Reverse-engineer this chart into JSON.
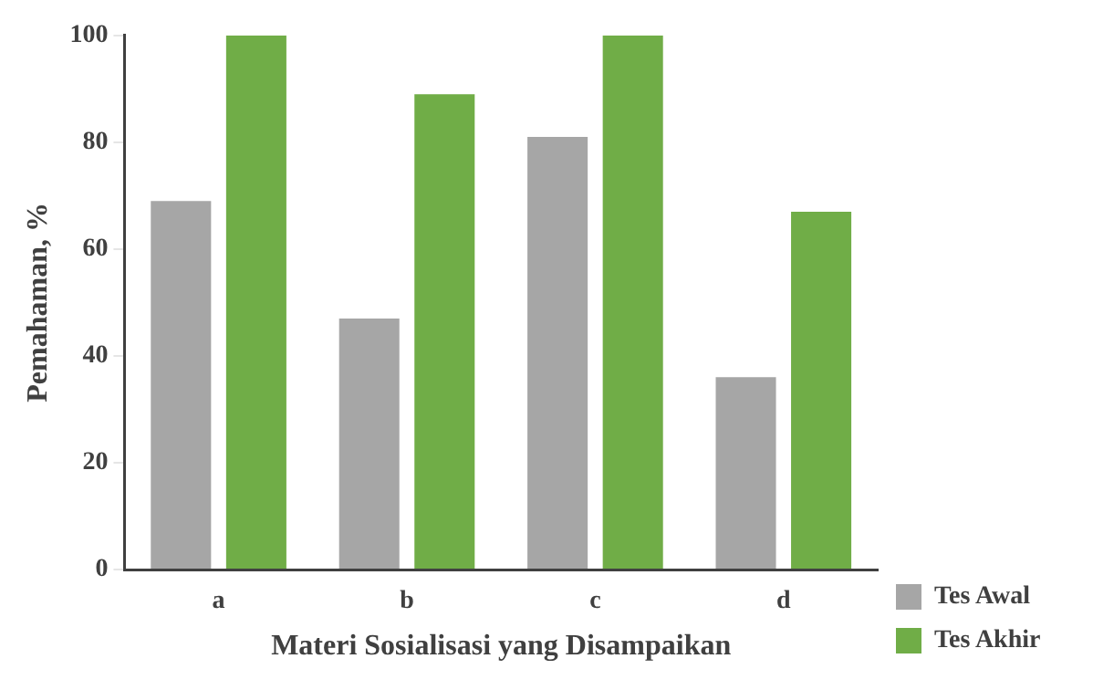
{
  "chart_data": {
    "type": "bar",
    "xlabel": "Materi Sosialisasi yang Disampaikan",
    "ylabel": "Pemahaman, %",
    "categories": [
      "a",
      "b",
      "c",
      "d"
    ],
    "series": [
      {
        "name": "Tes Awal",
        "color": "#a6a6a6",
        "values": [
          69,
          47,
          81,
          36
        ]
      },
      {
        "name": "Tes Akhir",
        "color": "#70ad47",
        "values": [
          100,
          89,
          100,
          67
        ]
      }
    ],
    "ylim": [
      0,
      100
    ],
    "yticks": [
      0,
      20,
      40,
      60,
      80,
      100
    ],
    "grid": false,
    "legend": "right"
  }
}
